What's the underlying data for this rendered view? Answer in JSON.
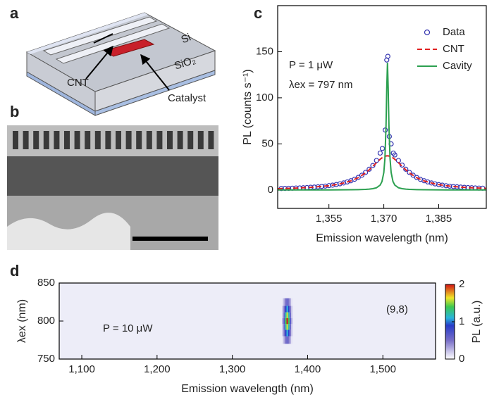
{
  "panel_labels": [
    "a",
    "b",
    "c",
    "d"
  ],
  "diagram": {
    "si": "Si",
    "sio2": "SiO₂",
    "cnt": "CNT",
    "catalyst": "Catalyst"
  },
  "chart_data": [
    {
      "type": "line",
      "xlabel": "Emission wavelength (nm)",
      "ylabel": "PL (counts s⁻¹)",
      "annotations": [
        "P = 1 μW",
        "λex = 797 nm"
      ],
      "xlim": [
        1341,
        1398
      ],
      "xticks": [
        {
          "value": 1355,
          "label": "1,355"
        },
        {
          "value": 1370,
          "label": "1,370"
        },
        {
          "value": 1385,
          "label": "1,385"
        }
      ],
      "ylim": [
        -20,
        200
      ],
      "yticks": [
        0,
        50,
        100,
        150
      ],
      "legend": "upper right",
      "series": [
        {
          "name": "Data",
          "color": "#3434b0",
          "marker": "circle",
          "x": [
            1342,
            1343,
            1344,
            1345,
            1346,
            1347,
            1348,
            1349,
            1350,
            1351,
            1352,
            1353,
            1354,
            1355,
            1356,
            1357,
            1358,
            1359,
            1360,
            1361,
            1362,
            1363,
            1364,
            1365,
            1366,
            1367,
            1368,
            1369,
            1369.6,
            1370.4,
            1370.8,
            1371.1,
            1371.5,
            1372,
            1372.6,
            1373,
            1374,
            1375,
            1376,
            1377,
            1378,
            1379,
            1380,
            1381,
            1382,
            1383,
            1384,
            1385,
            1386,
            1387,
            1388,
            1389,
            1390,
            1391,
            1392,
            1393,
            1394,
            1395,
            1396,
            1397
          ],
          "values": [
            1.6,
            1.7,
            1.8,
            1.9,
            2.1,
            2.2,
            2.4,
            2.6,
            2.9,
            3.1,
            3.4,
            3.8,
            4.2,
            4.7,
            5.2,
            5.9,
            6.7,
            7.6,
            8.7,
            10,
            11.6,
            13.6,
            16,
            19,
            22.5,
            26.5,
            32,
            40,
            45,
            65,
            141,
            145,
            58,
            50,
            40,
            38,
            32,
            27,
            22.5,
            19,
            16,
            13.5,
            11.5,
            10,
            8.7,
            7.6,
            6.6,
            5.8,
            5.2,
            4.6,
            4.1,
            3.7,
            3.4,
            3.1,
            2.8,
            2.6,
            2.4,
            2.2,
            2.0,
            1.9
          ]
        },
        {
          "name": "CNT",
          "color": "#e02020",
          "dash": "dashed",
          "x": [
            1341,
            1345,
            1350,
            1355,
            1358,
            1361,
            1363,
            1365,
            1366,
            1367,
            1368,
            1369,
            1369.5,
            1370,
            1370.3,
            1370.6,
            1370.8,
            1371,
            1371.2,
            1371.4,
            1371.7,
            1372,
            1372.5,
            1373,
            1374,
            1375,
            1376,
            1377,
            1379,
            1381,
            1384,
            1387,
            1391,
            1395,
            1398
          ],
          "values": [
            1.4,
            1.86,
            2.8,
            4.58,
            6.5,
            9.8,
            13.3,
            18.5,
            21.8,
            25.6,
            29.6,
            33.3,
            34.8,
            36,
            36.5,
            36.8,
            37,
            37,
            37,
            36.8,
            36.5,
            36,
            34.8,
            33.3,
            29.6,
            25.6,
            21.8,
            18.5,
            13.3,
            9.8,
            6.5,
            4.58,
            3.05,
            2.18,
            1.73
          ]
        },
        {
          "name": "Cavity",
          "color": "#2ca050",
          "x": [
            1341,
            1345,
            1350,
            1355,
            1358,
            1361,
            1363,
            1365,
            1366,
            1367,
            1368,
            1369,
            1369.5,
            1370,
            1370.3,
            1370.6,
            1370.8,
            1371,
            1371.2,
            1371.4,
            1371.7,
            1372,
            1372.5,
            1373,
            1374,
            1375,
            1376,
            1377,
            1379,
            1381,
            1384,
            1387,
            1391,
            1395,
            1398
          ],
          "values": [
            0.02,
            0.03,
            0.05,
            0.09,
            0.13,
            0.22,
            0.34,
            0.61,
            0.88,
            1.37,
            2.4,
            5.3,
            9.2,
            19,
            34,
            69,
            110,
            138,
            110,
            69,
            34,
            19,
            9.2,
            5.3,
            2.4,
            1.37,
            0.88,
            0.61,
            0.34,
            0.22,
            0.13,
            0.09,
            0.06,
            0.04,
            0.03
          ]
        }
      ]
    },
    {
      "type": "heatmap",
      "xlabel": "Emission wavelength (nm)",
      "ylabel": "λex (nm)",
      "annotations": [
        "P = 10 μW",
        "(9,8)"
      ],
      "xlim": [
        1070,
        1570
      ],
      "xticks": [
        {
          "value": 1100,
          "label": "1,100"
        },
        {
          "value": 1200,
          "label": "1,200"
        },
        {
          "value": 1300,
          "label": "1,300"
        },
        {
          "value": 1400,
          "label": "1,400"
        },
        {
          "value": 1500,
          "label": "1,500"
        }
      ],
      "ylim": [
        750,
        850
      ],
      "yticks": [
        750,
        800,
        850
      ],
      "x": [
        1367,
        1369,
        1371,
        1373,
        1375,
        1377,
        1379
      ],
      "y": [
        775,
        785,
        792,
        800,
        808,
        815,
        825
      ],
      "z": [
        [
          0.1,
          0.3,
          0.5,
          0.6,
          0.5,
          0.3,
          0.1
        ],
        [
          0.2,
          0.5,
          0.9,
          1.1,
          0.9,
          0.5,
          0.2
        ],
        [
          0.2,
          0.6,
          1.2,
          1.6,
          1.2,
          0.6,
          0.2
        ],
        [
          0.3,
          0.7,
          1.4,
          2.0,
          1.4,
          0.7,
          0.3
        ],
        [
          0.2,
          0.6,
          1.2,
          1.6,
          1.2,
          0.6,
          0.2
        ],
        [
          0.2,
          0.5,
          0.9,
          1.1,
          0.9,
          0.5,
          0.2
        ],
        [
          0.1,
          0.3,
          0.5,
          0.6,
          0.5,
          0.3,
          0.1
        ]
      ],
      "colorbar": {
        "label": "PL (a.u.)",
        "lim": [
          0,
          2
        ],
        "ticks": [
          0,
          1,
          2
        ]
      }
    }
  ]
}
